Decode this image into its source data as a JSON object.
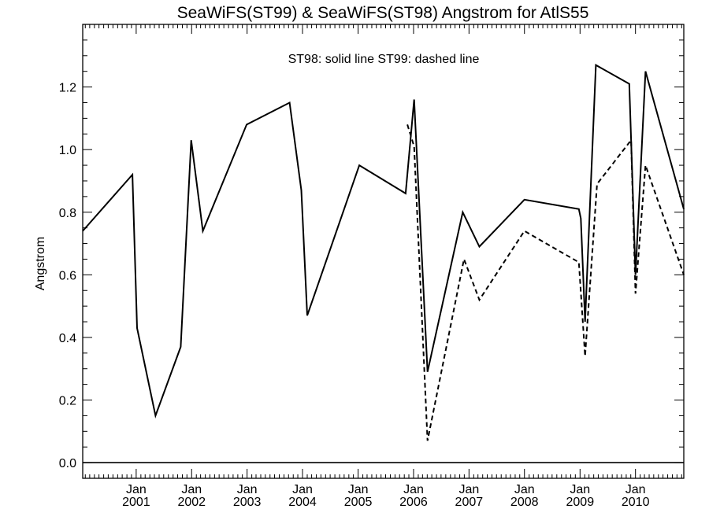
{
  "chart_data": {
    "type": "line",
    "title": "SeaWiFS(ST99) & SeaWiFS(ST98)  Angstrom for AtlS55",
    "annotation": "ST98: solid line   ST99: dashed line",
    "xlabel": "",
    "ylabel": "Angstrom",
    "ylim": [
      -0.05,
      1.4
    ],
    "xlim": [
      "2000-01-15",
      "2010-11-15"
    ],
    "yticks": [
      0.0,
      0.2,
      0.4,
      0.6,
      0.8,
      1.0,
      1.2
    ],
    "ytick_labels": [
      "0.0",
      "0.2",
      "0.4",
      "0.6",
      "0.8",
      "1.0",
      "1.2"
    ],
    "xticks": [
      {
        "date": "2001-01-01",
        "month": "Jan",
        "year": "2001"
      },
      {
        "date": "2002-01-01",
        "month": "Jan",
        "year": "2002"
      },
      {
        "date": "2003-01-01",
        "month": "Jan",
        "year": "2003"
      },
      {
        "date": "2004-01-01",
        "month": "Jan",
        "year": "2004"
      },
      {
        "date": "2005-01-01",
        "month": "Jan",
        "year": "2005"
      },
      {
        "date": "2006-01-01",
        "month": "Jan",
        "year": "2006"
      },
      {
        "date": "2007-01-01",
        "month": "Jan",
        "year": "2007"
      },
      {
        "date": "2008-01-01",
        "month": "Jan",
        "year": "2008"
      },
      {
        "date": "2009-01-01",
        "month": "Jan",
        "year": "2009"
      },
      {
        "date": "2010-01-01",
        "month": "Jan",
        "year": "2010"
      }
    ],
    "reference_line": 0.0,
    "series": [
      {
        "name": "ST98",
        "style": "solid",
        "points": [
          {
            "x": "2000-01-15",
            "y": 0.74
          },
          {
            "x": "2000-12-07",
            "y": 0.92
          },
          {
            "x": "2001-01-07",
            "y": 0.43
          },
          {
            "x": "2001-05-08",
            "y": 0.15
          },
          {
            "x": "2001-10-21",
            "y": 0.37
          },
          {
            "x": "2001-12-29",
            "y": 1.03
          },
          {
            "x": "2002-03-16",
            "y": 0.74
          },
          {
            "x": "2002-12-29",
            "y": 1.08
          },
          {
            "x": "2003-10-08",
            "y": 1.15
          },
          {
            "x": "2003-12-24",
            "y": 0.87
          },
          {
            "x": "2004-02-01",
            "y": 0.47
          },
          {
            "x": "2005-01-09",
            "y": 0.95
          },
          {
            "x": "2005-11-10",
            "y": 0.86
          },
          {
            "x": "2006-01-05",
            "y": 1.16
          },
          {
            "x": "2006-04-03",
            "y": 0.29
          },
          {
            "x": "2006-11-21",
            "y": 0.8
          },
          {
            "x": "2007-03-10",
            "y": 0.69
          },
          {
            "x": "2008-01-01",
            "y": 0.84
          },
          {
            "x": "2008-12-24",
            "y": 0.81
          },
          {
            "x": "2009-01-06",
            "y": 0.78
          },
          {
            "x": "2009-02-03",
            "y": 0.45
          },
          {
            "x": "2009-04-15",
            "y": 1.27
          },
          {
            "x": "2009-11-21",
            "y": 1.21
          },
          {
            "x": "2010-01-01",
            "y": 0.6
          },
          {
            "x": "2010-03-08",
            "y": 1.25
          },
          {
            "x": "2010-11-15",
            "y": 0.81
          }
        ]
      },
      {
        "name": "ST99",
        "style": "dashed",
        "points": [
          {
            "x": "2005-11-21",
            "y": 1.08
          },
          {
            "x": "2006-01-05",
            "y": 1.01
          },
          {
            "x": "2006-04-03",
            "y": 0.07
          },
          {
            "x": "2006-11-29",
            "y": 0.65
          },
          {
            "x": "2007-03-10",
            "y": 0.52
          },
          {
            "x": "2008-01-01",
            "y": 0.74
          },
          {
            "x": "2008-12-24",
            "y": 0.64
          },
          {
            "x": "2009-02-03",
            "y": 0.34
          },
          {
            "x": "2009-04-23",
            "y": 0.89
          },
          {
            "x": "2009-12-03",
            "y": 1.03
          },
          {
            "x": "2010-01-01",
            "y": 0.54
          },
          {
            "x": "2010-03-08",
            "y": 0.95
          },
          {
            "x": "2010-11-15",
            "y": 0.6
          }
        ]
      }
    ]
  }
}
